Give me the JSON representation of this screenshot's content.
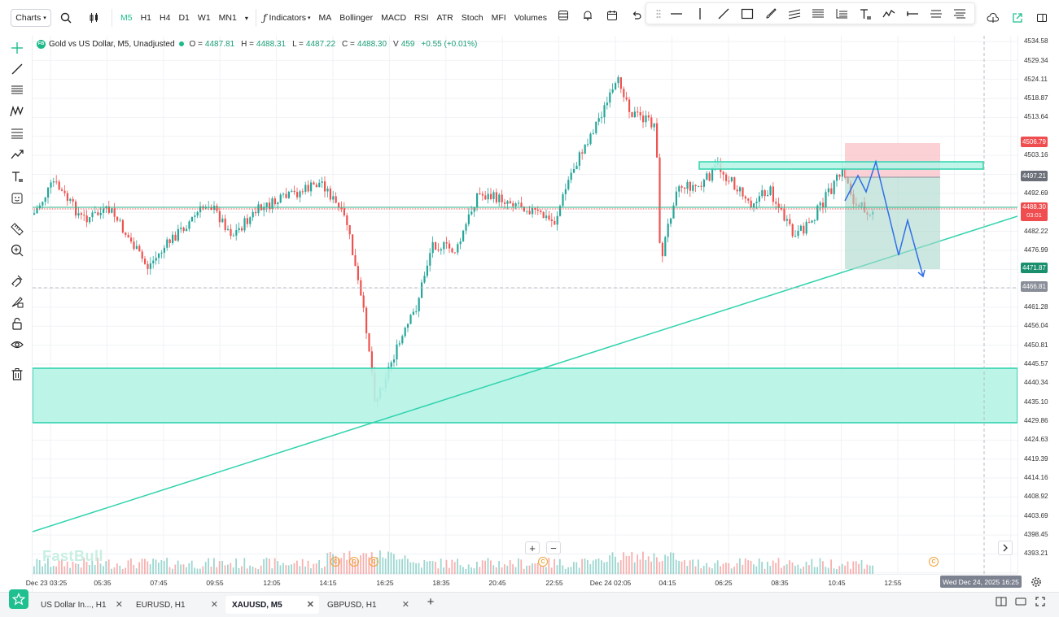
{
  "toolbar": {
    "charts_label": "Charts",
    "timeframes": [
      "M5",
      "H1",
      "H4",
      "D1",
      "W1",
      "MN1"
    ],
    "active_timeframe": "M5",
    "indicators_label": "Indicators",
    "indicator_items": [
      "MA",
      "Bollinger",
      "MACD",
      "RSI",
      "ATR",
      "Stoch",
      "MFI",
      "Volumes"
    ],
    "accent_color": "#1fbf8f"
  },
  "legend": {
    "symbol_badge": "FB",
    "title": "Gold vs US Dollar, M5, Unadjusted",
    "open_key": "O =",
    "open": "4487.81",
    "high_key": "H =",
    "high": "4488.31",
    "low_key": "L =",
    "low": "4487.22",
    "close_key": "C =",
    "close": "4488.30",
    "volume_key": "V",
    "volume": "459",
    "change": "+0.55 (+0.01%)"
  },
  "price_axis": {
    "ticks": [
      "4534.58",
      "4529.34",
      "4524.11",
      "4518.87",
      "4513.64",
      "4503.16",
      "4492.69",
      "4482.22",
      "4476.99",
      "4461.28",
      "4456.04",
      "4450.81",
      "4445.57",
      "4440.34",
      "4435.10",
      "4429.86",
      "4424.63",
      "4419.39",
      "4414.16",
      "4408.92",
      "4403.69",
      "4398.45",
      "4393.21"
    ],
    "label_stop": "4506.79",
    "label_entry": "4497.21",
    "label_current": "4488.30",
    "label_countdown": "03:01",
    "label_target": "4471.87",
    "label_crosshair": "4466.81"
  },
  "time_axis": {
    "ticks": [
      "Dec 23 03:25",
      "05:35",
      "07:45",
      "09:55",
      "12:05",
      "14:15",
      "16:25",
      "18:35",
      "20:45",
      "22:55",
      "Dec 24 02:05",
      "04:15",
      "06:25",
      "08:35",
      "10:45",
      "12:55"
    ],
    "crosshair_date": "Wed Dec 24, 2025 16:25"
  },
  "watermark": "FastBull",
  "event_marker": "C",
  "zoom": {
    "plus": "+",
    "minus": "−"
  },
  "tabs": [
    {
      "label": "US Dollar In..., H1",
      "active": false
    },
    {
      "label": "EURUSD, H1",
      "active": false
    },
    {
      "label": "XAUUSD, M5",
      "active": true
    },
    {
      "label": "GBPUSD, H1",
      "active": false
    }
  ],
  "tab_close": "✕",
  "tab_add": "+",
  "colors": {
    "up": "#26a69a",
    "down": "#ef5350",
    "zone": "#b5f3e6",
    "zone_border": "#2fd3ad",
    "projection": "#2962ff"
  }
}
